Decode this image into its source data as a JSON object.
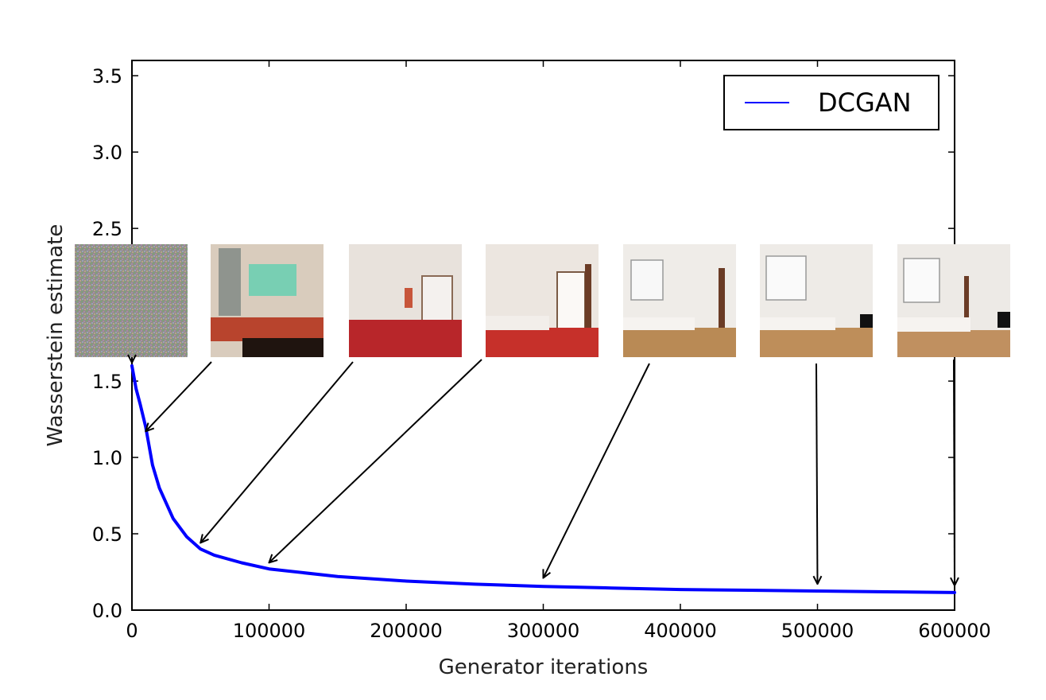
{
  "chart_data": {
    "type": "line",
    "xlabel": "Generator iterations",
    "ylabel": "Wasserstein estimate",
    "xlim": [
      0,
      600000
    ],
    "ylim": [
      0.0,
      3.6
    ],
    "xticks": [
      0,
      100000,
      200000,
      300000,
      400000,
      500000,
      600000
    ],
    "xtick_labels": [
      "0",
      "100000",
      "200000",
      "300000",
      "400000",
      "500000",
      "600000"
    ],
    "yticks": [
      0.0,
      0.5,
      1.0,
      1.5,
      2.0,
      2.5,
      3.0,
      3.5
    ],
    "ytick_labels": [
      "0.0",
      "0.5",
      "1.0",
      "1.5",
      "2.0",
      "2.5",
      "3.0",
      "3.5"
    ],
    "grid": false,
    "legend": "top-right",
    "series": [
      {
        "name": "DCGAN",
        "color": "#0000ff",
        "x": [
          0,
          3000,
          6000,
          10000,
          15000,
          20000,
          30000,
          40000,
          50000,
          60000,
          80000,
          100000,
          150000,
          200000,
          250000,
          300000,
          350000,
          400000,
          450000,
          500000,
          550000,
          600000
        ],
        "y": [
          1.6,
          1.45,
          1.35,
          1.2,
          0.95,
          0.8,
          0.6,
          0.48,
          0.4,
          0.36,
          0.31,
          0.27,
          0.22,
          0.19,
          0.17,
          0.155,
          0.145,
          0.135,
          0.13,
          0.125,
          0.12,
          0.115
        ]
      }
    ],
    "annotations": [
      {
        "label": "sample-0",
        "x": 0,
        "y": 1.6,
        "palette": "noise"
      },
      {
        "label": "sample-1",
        "x": 10000,
        "y": 1.15,
        "palette": "blurry"
      },
      {
        "label": "sample-2",
        "x": 50000,
        "y": 0.42,
        "palette": "red-room"
      },
      {
        "label": "sample-3",
        "x": 100000,
        "y": 0.29,
        "palette": "red-room-2"
      },
      {
        "label": "sample-4",
        "x": 300000,
        "y": 0.19,
        "palette": "wood-room"
      },
      {
        "label": "sample-5",
        "x": 500000,
        "y": 0.15,
        "palette": "wood-room-2"
      },
      {
        "label": "sample-6",
        "x": 600000,
        "y": 0.14,
        "palette": "wood-room-3"
      }
    ]
  }
}
